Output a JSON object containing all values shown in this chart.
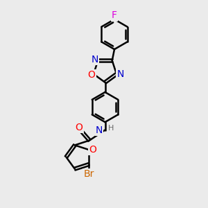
{
  "bg_color": "#ebebeb",
  "bond_color": "#000000",
  "bond_width": 1.8,
  "atom_colors": {
    "C": "#000000",
    "N": "#0000cc",
    "O": "#ff0000",
    "F": "#dd00dd",
    "Br": "#cc6600",
    "H": "#666666"
  },
  "font_size": 10,
  "font_size_small": 8,
  "dbo": 0.055
}
